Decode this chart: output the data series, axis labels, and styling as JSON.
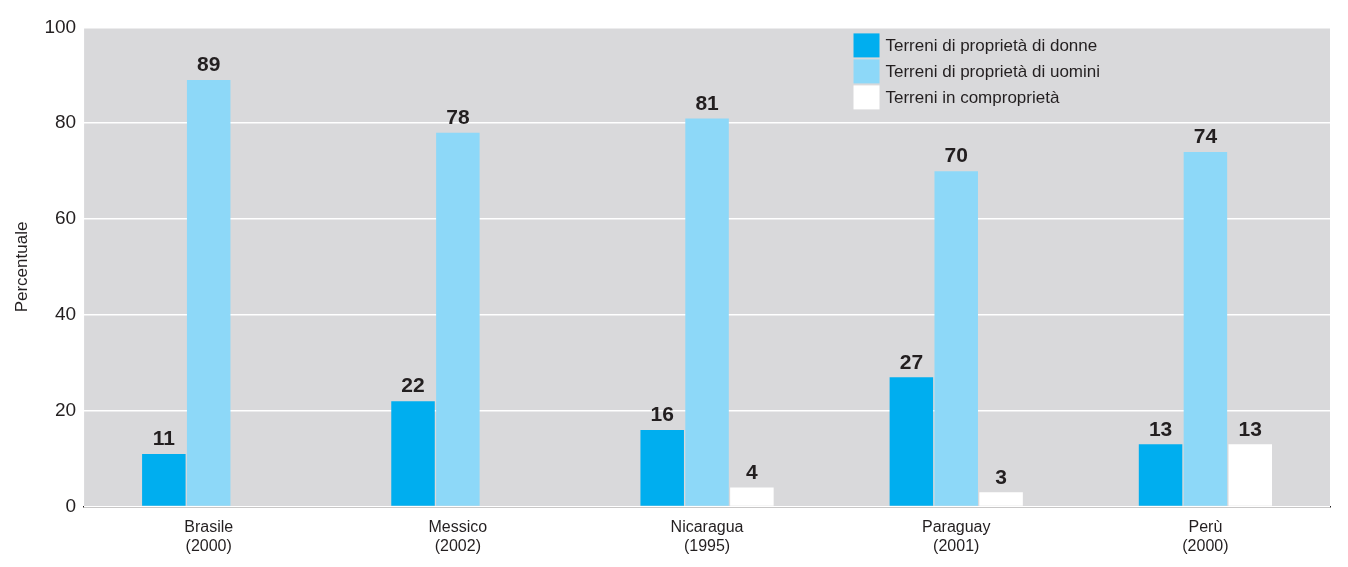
{
  "chart_data": {
    "type": "bar",
    "ylabel": "Percentuale",
    "categories": [
      "Brasile\n(2000)",
      "Messico\n(2002)",
      "Nicaragua\n(1995)",
      "Paraguay\n(2001)",
      "Perù\n(2000)"
    ],
    "series": [
      {
        "name": "Terreni di proprietà di donne",
        "color": "#00aeef",
        "values": [
          11,
          22,
          16,
          27,
          13
        ]
      },
      {
        "name": "Terreni di proprietà di uomini",
        "color": "#8dd8f8",
        "values": [
          89,
          78,
          81,
          70,
          74
        ]
      },
      {
        "name": "Terreni in comproprietà",
        "color": "#ffffff",
        "values": [
          null,
          null,
          4,
          3,
          13
        ]
      }
    ],
    "ylim": [
      0,
      100
    ],
    "yticks": [
      0,
      20,
      40,
      60,
      80,
      100
    ],
    "grid": "y",
    "legend": "top right",
    "data_labels": true
  }
}
